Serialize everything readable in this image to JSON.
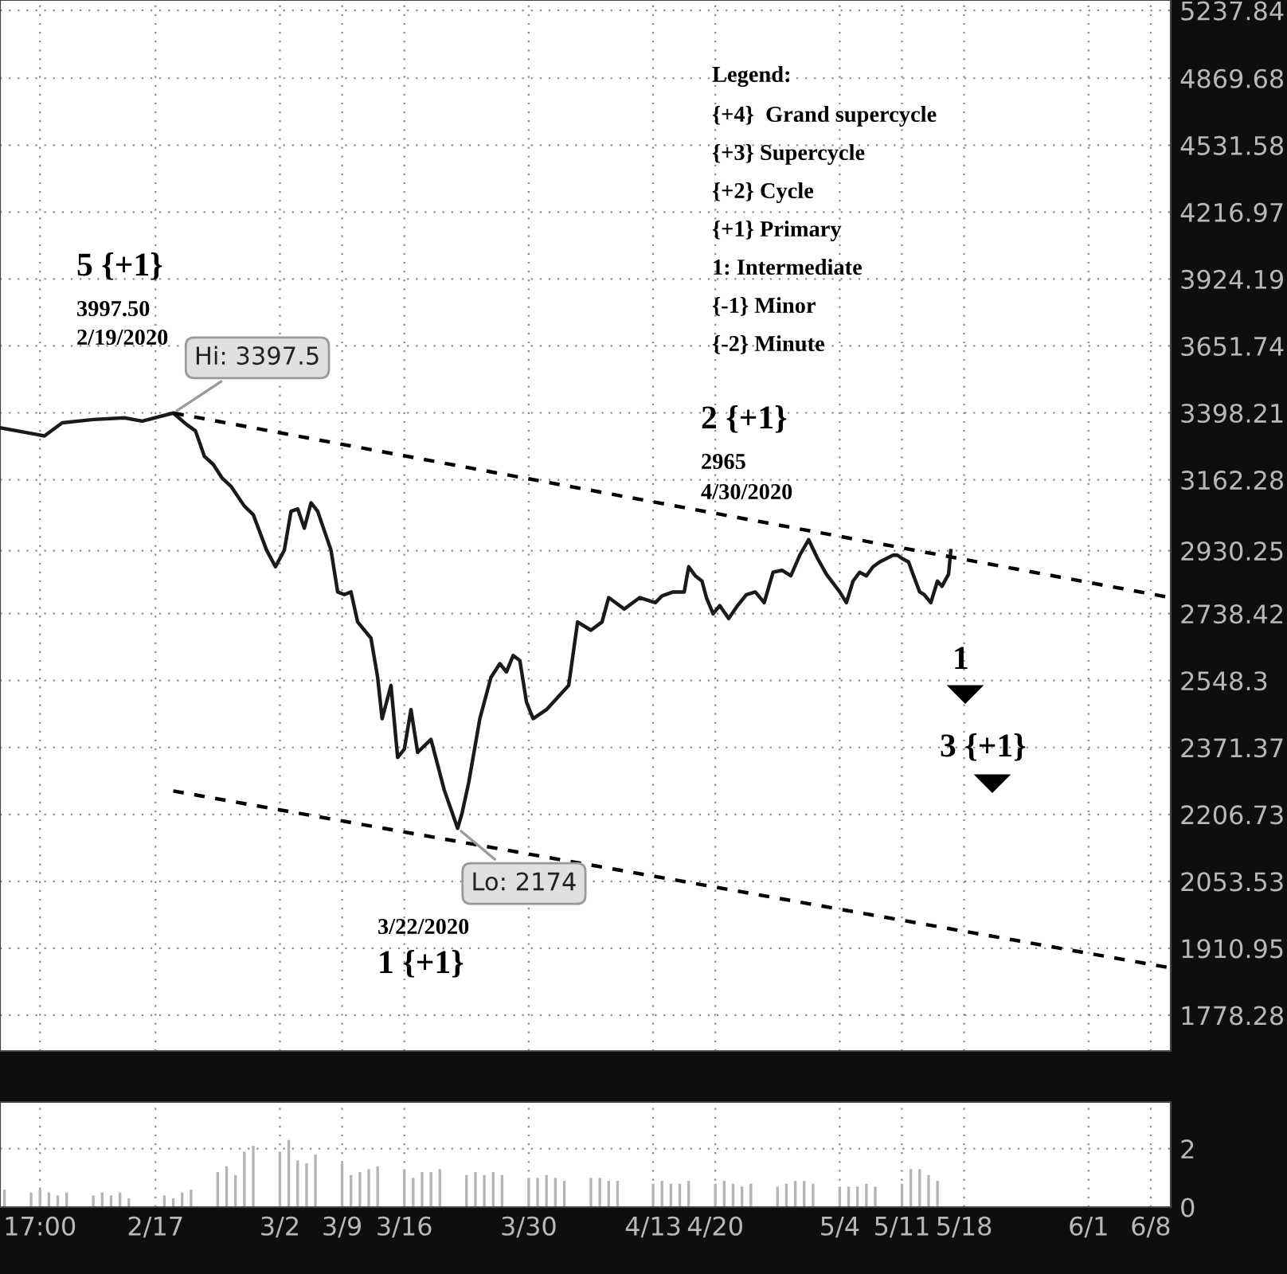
{
  "chart_data": [
    {
      "type": "line",
      "log": true,
      "grid": true,
      "tick_labels": "y",
      "marker": "none",
      "xlim": [
        "2020-01-30T12:00",
        "2020-06-10T06:00"
      ],
      "ylim": [
        1711,
        5297
      ],
      "xticks": [
        {
          "value": "2020-02-04",
          "label": null
        },
        {
          "value": "2020-02-17",
          "label": null
        },
        {
          "value": "2020-03-02",
          "label": null
        },
        {
          "value": "2020-03-09",
          "label": null
        },
        {
          "value": "2020-03-16",
          "label": null
        },
        {
          "value": "2020-03-30",
          "label": null
        },
        {
          "value": "2020-04-13",
          "label": null
        },
        {
          "value": "2020-04-20",
          "label": null
        },
        {
          "value": "2020-05-04",
          "label": null
        },
        {
          "value": "2020-05-11",
          "label": null
        },
        {
          "value": "2020-05-18",
          "label": null
        },
        {
          "value": "2020-06-01",
          "label": null
        },
        {
          "value": "2020-06-08",
          "label": null
        }
      ],
      "yticks": [
        1778.28,
        1910.95,
        2053.53,
        2206.73,
        2371.37,
        2548.3,
        2738.42,
        2930.25,
        3162.28,
        3398.21,
        3651.74,
        3924.19,
        4216.97,
        4531.58,
        4869.68,
        5237.84
      ],
      "series": [
        {
          "color": "#1a1a1a",
          "line_style": "solid",
          "x": [
            "2020-01-30T12:00",
            "2020-02-03T12:00",
            "2020-02-04T12:00",
            "2020-02-06T12:00",
            "2020-02-10T00:00",
            "2020-02-13T12:00",
            "2020-02-15T12:00",
            "2020-02-19T00:00",
            "2020-02-20T12:00",
            "2020-02-21T12:00",
            "2020-02-22T12:00",
            "2020-02-23T12:00",
            "2020-02-24T12:00",
            "2020-02-25T12:00",
            "2020-02-27T00:00",
            "2020-02-28T00:00",
            "2020-02-29T12:00",
            "2020-03-01T12:00",
            "2020-03-02T12:00",
            "2020-03-03T06:00",
            "2020-03-04T00:00",
            "2020-03-04T18:00",
            "2020-03-05T12:00",
            "2020-03-06T06:00",
            "2020-03-07T18:00",
            "2020-03-08T12:00",
            "2020-03-09T06:00",
            "2020-03-10T00:00",
            "2020-03-10T18:00",
            "2020-03-12T06:00",
            "2020-03-13T00:00",
            "2020-03-13T12:00",
            "2020-03-14T12:00",
            "2020-03-15T06:00",
            "2020-03-16T00:00",
            "2020-03-16T18:00",
            "2020-03-17T12:00",
            "2020-03-19T00:00",
            "2020-03-20T12:00",
            "2020-03-22T00:00",
            "2020-03-22T12:00",
            "2020-03-23T06:00",
            "2020-03-24T12:00",
            "2020-03-25T18:00",
            "2020-03-26T18:00",
            "2020-03-27T12:00",
            "2020-03-28T06:00",
            "2020-03-29T00:00",
            "2020-03-29T18:00",
            "2020-03-30T12:00",
            "2020-04-01T00:00",
            "2020-04-03T12:00",
            "2020-04-04T12:00",
            "2020-04-06T00:00",
            "2020-04-07T06:00",
            "2020-04-08T00:00",
            "2020-04-09T18:00",
            "2020-04-11T12:00",
            "2020-04-13T06:00",
            "2020-04-14T00:00",
            "2020-04-15T06:00",
            "2020-04-16T12:00",
            "2020-04-17T00:00",
            "2020-04-17T18:00",
            "2020-04-18T12:00",
            "2020-04-19T00:00",
            "2020-04-19T18:00",
            "2020-04-20T12:00",
            "2020-04-21T12:00",
            "2020-04-22T12:00",
            "2020-04-23T12:00",
            "2020-04-24T12:00",
            "2020-04-25T12:00",
            "2020-04-26T12:00",
            "2020-04-27T12:00",
            "2020-04-28T12:00",
            "2020-04-29T12:00",
            "2020-04-30T12:00",
            "2020-05-01T12:00",
            "2020-05-02T12:00",
            "2020-05-04T00:00",
            "2020-05-04T18:00",
            "2020-05-05T12:00",
            "2020-05-06T06:00",
            "2020-05-07T00:00",
            "2020-05-07T18:00",
            "2020-05-08T12:00",
            "2020-05-10T00:00",
            "2020-05-10T12:00",
            "2020-05-11T00:00",
            "2020-05-11T18:00",
            "2020-05-12T06:00",
            "2020-05-13T00:00",
            "2020-05-13T12:00",
            "2020-05-14T06:00",
            "2020-05-15T00:00",
            "2020-05-15T12:00",
            "2020-05-16T06:00",
            "2020-05-16T12:00"
          ],
          "values": [
            3344,
            3321,
            3315,
            3362,
            3374,
            3380,
            3368,
            3397.5,
            3356,
            3333,
            3243,
            3215,
            3168,
            3140,
            3074,
            3046,
            2932,
            2880,
            2932,
            3057,
            3065,
            3002,
            3085,
            3057,
            2932,
            2803,
            2795,
            2803,
            2714,
            2667,
            2557,
            2446,
            2535,
            2346,
            2367,
            2470,
            2359,
            2392,
            2265,
            2174,
            2210,
            2284,
            2446,
            2557,
            2595,
            2572,
            2618,
            2604,
            2490,
            2446,
            2470,
            2535,
            2714,
            2690,
            2714,
            2786,
            2752,
            2786,
            2771,
            2791,
            2803,
            2803,
            2880,
            2852,
            2836,
            2786,
            2738,
            2762,
            2724,
            2762,
            2795,
            2803,
            2771,
            2863,
            2869,
            2852,
            2916,
            2965,
            2906,
            2857,
            2803,
            2771,
            2836,
            2863,
            2852,
            2880,
            2895,
            2916,
            2916,
            2906,
            2895,
            2857,
            2803,
            2795,
            2771,
            2836,
            2820,
            2857,
            2930.25
          ]
        },
        {
          "type": "line",
          "color": "#000000",
          "line_style": "dashed",
          "x": [
            "2020-02-19T00:00",
            "2020-06-10T06:00"
          ],
          "values": [
            3397.5,
            2786
          ]
        },
        {
          "type": "line",
          "color": "#000000",
          "line_style": "dashed",
          "x": [
            "2020-02-19T00:00",
            "2020-06-10T06:00"
          ],
          "values": [
            2263,
            1871
          ]
        }
      ],
      "annotations": [
        "Legend:",
        "{+4}  Grand supercycle",
        "{+3} Supercycle",
        "{+2} Cycle",
        "{+1} Primary",
        "1: Intermediate",
        "{-1} Minor",
        "{-2} Minute",
        "5 {+1}",
        "3997.50",
        "2/19/2020",
        "2 {+1}",
        "2965",
        "4/30/2020",
        "1",
        "3 {+1}",
        "3/22/2020",
        "1 {+1}",
        {
          "text": "Hi: 3397.5",
          "x": "2020-02-19T00:00",
          "y": 3397.5
        },
        {
          "text": "Lo: 2174",
          "x": "2020-03-22T00:00",
          "y": 2174
        }
      ]
    },
    {
      "type": "bar",
      "grid": true,
      "color": "#b4b4b4",
      "xlim": [
        "2020-01-30T12:00",
        "2020-06-10T06:00"
      ],
      "ylim": [
        0,
        3.6
      ],
      "yticks": [
        0,
        2
      ],
      "xticks": [
        {
          "value": "2020-02-04",
          "label": "17:00"
        },
        {
          "value": "2020-02-17",
          "label": "2/17"
        },
        {
          "value": "2020-03-02",
          "label": "3/2"
        },
        {
          "value": "2020-03-09",
          "label": "3/9"
        },
        {
          "value": "2020-03-16",
          "label": "3/16"
        },
        {
          "value": "2020-03-30",
          "label": "3/30"
        },
        {
          "value": "2020-04-13",
          "label": "4/13"
        },
        {
          "value": "2020-04-20",
          "label": "4/20"
        },
        {
          "value": "2020-05-04",
          "label": "5/4"
        },
        {
          "value": "2020-05-11",
          "label": "5/11"
        },
        {
          "value": "2020-05-18",
          "label": "5/18"
        },
        {
          "value": "2020-06-01",
          "label": "6/1"
        },
        {
          "value": "2020-06-08",
          "label": "6/8"
        }
      ],
      "x": [
        "2020-01-31",
        "2020-02-03",
        "2020-02-04",
        "2020-02-05",
        "2020-02-06",
        "2020-02-07",
        "2020-02-10",
        "2020-02-11",
        "2020-02-12",
        "2020-02-13",
        "2020-02-14",
        "2020-02-18",
        "2020-02-19",
        "2020-02-20",
        "2020-02-21",
        "2020-02-24",
        "2020-02-25",
        "2020-02-26",
        "2020-02-27",
        "2020-02-28",
        "2020-03-02",
        "2020-03-03",
        "2020-03-04",
        "2020-03-05",
        "2020-03-06",
        "2020-03-09",
        "2020-03-10",
        "2020-03-11",
        "2020-03-12",
        "2020-03-13",
        "2020-03-16",
        "2020-03-17",
        "2020-03-18",
        "2020-03-19",
        "2020-03-20",
        "2020-03-23",
        "2020-03-24",
        "2020-03-25",
        "2020-03-26",
        "2020-03-27",
        "2020-03-30",
        "2020-03-31",
        "2020-04-01",
        "2020-04-02",
        "2020-04-03",
        "2020-04-06",
        "2020-04-07",
        "2020-04-08",
        "2020-04-09",
        "2020-04-13",
        "2020-04-14",
        "2020-04-15",
        "2020-04-16",
        "2020-04-17",
        "2020-04-20",
        "2020-04-21",
        "2020-04-22",
        "2020-04-23",
        "2020-04-24",
        "2020-04-27",
        "2020-04-28",
        "2020-04-29",
        "2020-04-30",
        "2020-05-01",
        "2020-05-04",
        "2020-05-05",
        "2020-05-06",
        "2020-05-07",
        "2020-05-08",
        "2020-05-11",
        "2020-05-12",
        "2020-05-13",
        "2020-05-14",
        "2020-05-15"
      ],
      "values": [
        0.6,
        0.5,
        0.6,
        0.5,
        0.4,
        0.5,
        0.4,
        0.5,
        0.4,
        0.5,
        0.3,
        0.4,
        0.3,
        0.5,
        0.6,
        1.2,
        1.4,
        1.1,
        1.9,
        2.1,
        1.9,
        2.3,
        1.6,
        1.5,
        1.8,
        1.5,
        1.1,
        1.2,
        1.3,
        1.4,
        1.3,
        1.0,
        1.2,
        1.2,
        1.3,
        1.1,
        1.2,
        1.1,
        1.2,
        1.1,
        1.0,
        1.0,
        1.1,
        1.0,
        0.9,
        1.0,
        1.0,
        0.9,
        0.9,
        0.8,
        0.9,
        0.8,
        0.8,
        0.9,
        0.8,
        0.9,
        0.8,
        0.7,
        0.8,
        0.7,
        0.8,
        0.9,
        0.9,
        0.8,
        0.7,
        0.7,
        0.7,
        0.8,
        0.7,
        0.8,
        1.3,
        1.3,
        1.1,
        0.9
      ]
    }
  ]
}
